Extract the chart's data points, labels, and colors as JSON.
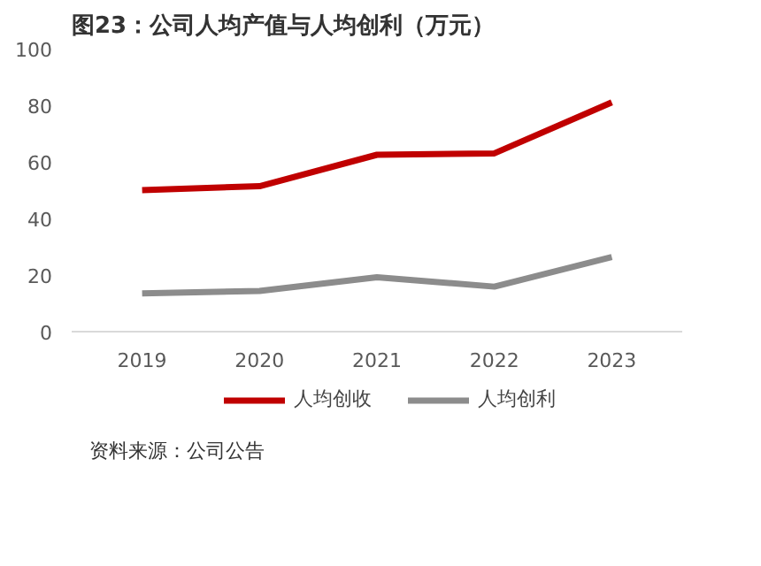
{
  "chart_data": {
    "type": "line",
    "title": "图23：公司人均产值与人均创利（万元）",
    "categories": [
      "2019",
      "2020",
      "2021",
      "2022",
      "2023"
    ],
    "series": [
      {
        "name": "人均创收",
        "color": "#c00000",
        "values": [
          50,
          51.4,
          62.5,
          63,
          81
        ]
      },
      {
        "name": "人均创利",
        "color": "#8c8c8c",
        "values": [
          13.5,
          14.4,
          19.2,
          15.9,
          26.4
        ]
      }
    ],
    "ylim": [
      0,
      100
    ],
    "yticks": [
      0,
      20,
      40,
      60,
      80,
      100
    ],
    "grid": false,
    "legend": "bottom",
    "line_style": "solid",
    "annotations": [
      "资料来源：公司公告"
    ]
  }
}
